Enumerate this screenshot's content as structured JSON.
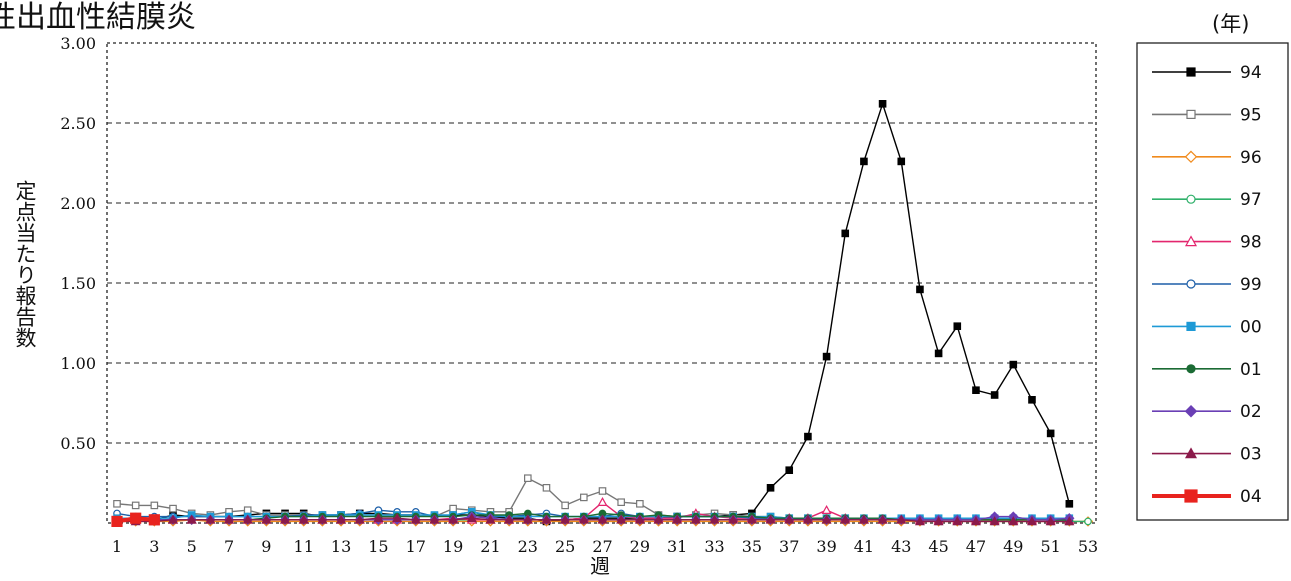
{
  "chart_data": {
    "type": "line",
    "title": "性出血性結膜炎",
    "unit_label": "(年)",
    "xlabel": "週",
    "ylabel": "定点当たり報告数",
    "ylim": [
      0,
      3.0
    ],
    "xlim": [
      1,
      53
    ],
    "y_ticks": [
      "0.50",
      "1.00",
      "1.50",
      "2.00",
      "2.50",
      "3.00"
    ],
    "x_ticks": [
      "1",
      "3",
      "5",
      "7",
      "9",
      "11",
      "13",
      "15",
      "17",
      "19",
      "21",
      "23",
      "25",
      "27",
      "29",
      "31",
      "33",
      "35",
      "37",
      "39",
      "41",
      "43",
      "45",
      "47",
      "49",
      "51",
      "53"
    ],
    "grid": "horizontal dashed",
    "legend": "right",
    "series": [
      {
        "name": "94",
        "color": "#000000",
        "marker": "square-filled",
        "values": [
          0.02,
          0.03,
          0.02,
          0.05,
          0.04,
          0.04,
          0.04,
          0.05,
          0.06,
          0.06,
          0.06,
          0.04,
          0.05,
          0.06,
          0.06,
          0.05,
          0.05,
          0.04,
          0.05,
          0.05,
          0.04,
          0.03,
          0.03,
          0.01,
          0.02,
          0.03,
          0.03,
          0.03,
          0.03,
          0.03,
          0.04,
          0.04,
          0.04,
          0.05,
          0.06,
          0.22,
          0.33,
          0.54,
          1.04,
          1.81,
          2.26,
          2.62,
          2.26,
          1.46,
          1.06,
          1.23,
          0.83,
          0.8,
          0.99,
          0.77,
          0.56,
          0.12
        ]
      },
      {
        "name": "95",
        "color": "#777777",
        "marker": "square-open",
        "values": [
          0.12,
          0.11,
          0.11,
          0.09,
          0.06,
          0.05,
          0.07,
          0.08,
          0.05,
          0.05,
          0.05,
          0.05,
          0.05,
          0.05,
          0.05,
          0.05,
          0.05,
          0.04,
          0.09,
          0.08,
          0.07,
          0.07,
          0.28,
          0.22,
          0.11,
          0.16,
          0.2,
          0.13,
          0.12,
          0.05,
          0.04,
          0.05,
          0.06,
          0.05,
          0.04,
          0.04,
          0.03,
          0.03,
          0.03,
          0.03,
          0.02,
          0.02,
          0.02,
          0.02,
          0.01,
          0.01,
          0.01,
          0.01,
          0.01,
          0.01,
          0.01,
          0.01
        ]
      },
      {
        "name": "96",
        "color": "#f08a1c",
        "marker": "diamond-open",
        "values": [
          0.01,
          0.01,
          0.01,
          0.01,
          0.02,
          0.01,
          0.01,
          0.01,
          0.01,
          0.01,
          0.01,
          0.01,
          0.01,
          0.01,
          0.01,
          0.01,
          0.01,
          0.01,
          0.01,
          0.01,
          0.01,
          0.01,
          0.01,
          0.01,
          0.01,
          0.01,
          0.01,
          0.01,
          0.01,
          0.01,
          0.01,
          0.01,
          0.01,
          0.01,
          0.01,
          0.01,
          0.01,
          0.01,
          0.01,
          0.01,
          0.01,
          0.01,
          0.01,
          0.01,
          0.01,
          0.01,
          0.01,
          0.01,
          0.01,
          0.01,
          0.01,
          0.01,
          0.01
        ]
      },
      {
        "name": "97",
        "color": "#2fb06a",
        "marker": "circle-open",
        "values": [
          0.02,
          0.02,
          0.02,
          0.02,
          0.02,
          0.02,
          0.02,
          0.02,
          0.02,
          0.02,
          0.02,
          0.02,
          0.02,
          0.02,
          0.02,
          0.02,
          0.02,
          0.02,
          0.02,
          0.02,
          0.02,
          0.02,
          0.02,
          0.02,
          0.02,
          0.02,
          0.02,
          0.02,
          0.02,
          0.02,
          0.02,
          0.02,
          0.02,
          0.02,
          0.02,
          0.02,
          0.02,
          0.02,
          0.02,
          0.02,
          0.02,
          0.02,
          0.02,
          0.02,
          0.02,
          0.02,
          0.02,
          0.02,
          0.02,
          0.02,
          0.02,
          0.01,
          0.01
        ]
      },
      {
        "name": "98",
        "color": "#e3266e",
        "marker": "triangle-open",
        "values": [
          0.02,
          0.02,
          0.02,
          0.02,
          0.02,
          0.02,
          0.02,
          0.02,
          0.02,
          0.02,
          0.02,
          0.02,
          0.02,
          0.02,
          0.02,
          0.02,
          0.02,
          0.02,
          0.03,
          0.02,
          0.02,
          0.02,
          0.02,
          0.02,
          0.02,
          0.03,
          0.13,
          0.04,
          0.03,
          0.03,
          0.03,
          0.06,
          0.04,
          0.03,
          0.03,
          0.03,
          0.03,
          0.03,
          0.08,
          0.03,
          0.02,
          0.02,
          0.02,
          0.02,
          0.02,
          0.02,
          0.02,
          0.02,
          0.02,
          0.02,
          0.02,
          0.02
        ]
      },
      {
        "name": "99",
        "color": "#1d5fa8",
        "marker": "circle-open",
        "values": [
          0.06,
          0.04,
          0.04,
          0.04,
          0.04,
          0.04,
          0.04,
          0.04,
          0.04,
          0.04,
          0.05,
          0.05,
          0.05,
          0.06,
          0.08,
          0.07,
          0.07,
          0.04,
          0.05,
          0.07,
          0.04,
          0.04,
          0.05,
          0.06,
          0.04,
          0.04,
          0.04,
          0.06,
          0.04,
          0.04,
          0.04,
          0.04,
          0.04,
          0.04,
          0.03,
          0.03,
          0.03,
          0.03,
          0.03,
          0.03,
          0.03,
          0.03,
          0.03,
          0.03,
          0.03,
          0.03,
          0.03,
          0.03,
          0.03,
          0.03,
          0.03,
          0.03
        ]
      },
      {
        "name": "00",
        "color": "#1e9ad6",
        "marker": "square-filled",
        "values": [
          0.03,
          0.03,
          0.03,
          0.03,
          0.05,
          0.04,
          0.04,
          0.04,
          0.04,
          0.04,
          0.04,
          0.05,
          0.05,
          0.05,
          0.05,
          0.05,
          0.05,
          0.05,
          0.05,
          0.07,
          0.05,
          0.04,
          0.04,
          0.04,
          0.04,
          0.04,
          0.04,
          0.04,
          0.04,
          0.04,
          0.04,
          0.04,
          0.04,
          0.04,
          0.04,
          0.04,
          0.03,
          0.03,
          0.03,
          0.03,
          0.03,
          0.03,
          0.03,
          0.03,
          0.03,
          0.03,
          0.03,
          0.03,
          0.03,
          0.03,
          0.03,
          0.03
        ]
      },
      {
        "name": "01",
        "color": "#1b6b34",
        "marker": "circle-filled",
        "values": [
          0.02,
          0.02,
          0.02,
          0.02,
          0.02,
          0.02,
          0.02,
          0.02,
          0.03,
          0.04,
          0.04,
          0.04,
          0.04,
          0.04,
          0.04,
          0.04,
          0.04,
          0.04,
          0.04,
          0.05,
          0.05,
          0.05,
          0.06,
          0.04,
          0.04,
          0.04,
          0.06,
          0.05,
          0.04,
          0.05,
          0.04,
          0.04,
          0.04,
          0.04,
          0.04,
          0.03,
          0.03,
          0.03,
          0.03,
          0.03,
          0.03,
          0.03,
          0.02,
          0.02,
          0.02,
          0.02,
          0.02,
          0.02,
          0.02,
          0.02,
          0.02,
          0.02
        ]
      },
      {
        "name": "02",
        "color": "#6a3fb5",
        "marker": "diamond-filled",
        "values": [
          0.01,
          0.02,
          0.02,
          0.02,
          0.02,
          0.02,
          0.02,
          0.02,
          0.02,
          0.02,
          0.02,
          0.02,
          0.02,
          0.02,
          0.02,
          0.02,
          0.02,
          0.02,
          0.02,
          0.04,
          0.03,
          0.02,
          0.02,
          0.02,
          0.02,
          0.02,
          0.02,
          0.02,
          0.02,
          0.02,
          0.02,
          0.02,
          0.02,
          0.02,
          0.02,
          0.02,
          0.02,
          0.02,
          0.02,
          0.02,
          0.02,
          0.02,
          0.02,
          0.02,
          0.02,
          0.02,
          0.02,
          0.04,
          0.04,
          0.02,
          0.02,
          0.03
        ]
      },
      {
        "name": "03",
        "color": "#8b1a4a",
        "marker": "triangle-filled",
        "values": [
          0.01,
          0.01,
          0.01,
          0.02,
          0.02,
          0.02,
          0.02,
          0.02,
          0.02,
          0.02,
          0.02,
          0.02,
          0.02,
          0.02,
          0.03,
          0.03,
          0.02,
          0.02,
          0.02,
          0.03,
          0.02,
          0.02,
          0.02,
          0.02,
          0.02,
          0.02,
          0.02,
          0.02,
          0.02,
          0.02,
          0.02,
          0.02,
          0.02,
          0.02,
          0.02,
          0.02,
          0.02,
          0.02,
          0.02,
          0.02,
          0.02,
          0.02,
          0.02,
          0.01,
          0.01,
          0.01,
          0.01,
          0.01,
          0.01,
          0.01,
          0.01,
          0.01
        ]
      },
      {
        "name": "04",
        "color": "#e8231e",
        "marker": "square-filled",
        "bold": true,
        "values": [
          0.01,
          0.03,
          0.02
        ]
      }
    ]
  }
}
